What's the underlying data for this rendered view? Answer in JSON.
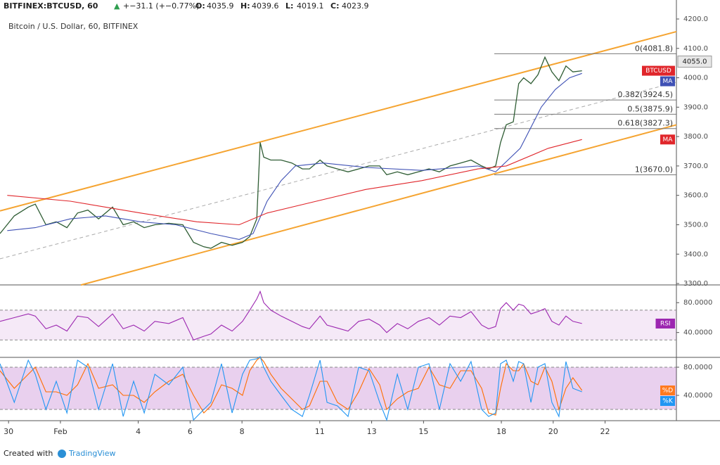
{
  "chart_data": [
    {
      "type": "line",
      "header": {
        "symbol": "BITFINEX:BTCUSD, 60",
        "arrow": "▲",
        "change": "+−31.1 (+−0.77%)",
        "ohlc": [
          {
            "label": "O:",
            "value": 4035.9
          },
          {
            "label": "H:",
            "value": 4039.6
          },
          {
            "label": "L:",
            "value": 4019.1
          },
          {
            "label": "C:",
            "value": 4023.9
          }
        ]
      },
      "subtitle": "Bitcoin / U.S. Dollar, 60, BITFINEX",
      "xlim": [
        29.67,
        55.75
      ],
      "xticks": [
        {
          "value": 30,
          "label": "30"
        },
        {
          "value": 32,
          "label": "Feb"
        },
        {
          "value": 35,
          "label": "4"
        },
        {
          "value": 37,
          "label": "6"
        },
        {
          "value": 39,
          "label": "8"
        },
        {
          "value": 42,
          "label": "11"
        },
        {
          "value": 44,
          "label": "13"
        },
        {
          "value": 46,
          "label": "15"
        },
        {
          "value": 49,
          "label": "18"
        },
        {
          "value": 51,
          "label": "20"
        },
        {
          "value": 53,
          "label": "22"
        }
      ],
      "ylim": [
        3295.3,
        4264.6
      ],
      "yticks": [
        {
          "value": 4200,
          "label": "4200.0"
        },
        {
          "value": 4100,
          "label": "4100.0"
        },
        {
          "value": 4000,
          "label": "4000.0"
        },
        {
          "value": 3900,
          "label": "3900.0"
        },
        {
          "value": 3800,
          "label": "3800.0"
        },
        {
          "value": 3700,
          "label": "3700.0"
        },
        {
          "value": 3600,
          "label": "3600.0"
        },
        {
          "value": 3500,
          "label": "3500.0"
        },
        {
          "value": 3400,
          "label": "3400.0"
        },
        {
          "value": 3300,
          "label": "3300.0"
        }
      ],
      "price_tag": {
        "value": 4055,
        "label": "4055.0"
      },
      "series": [
        {
          "name": "BTCUSD",
          "color": "#2f5d34",
          "tag_color": "#e0262b",
          "x": [
            29.67,
            30.22,
            30.76,
            31.03,
            31.44,
            31.84,
            32.25,
            32.66,
            33.06,
            33.47,
            34.01,
            34.42,
            34.82,
            35.23,
            35.64,
            36.18,
            36.72,
            37.13,
            37.53,
            37.8,
            38.21,
            38.62,
            39.02,
            39.3,
            39.57,
            39.7,
            39.84,
            40.11,
            40.51,
            40.92,
            41.33,
            41.6,
            42.01,
            42.28,
            42.68,
            43.09,
            43.5,
            43.9,
            44.31,
            44.58,
            44.99,
            45.39,
            45.8,
            46.21,
            46.61,
            47.02,
            47.43,
            47.83,
            48.24,
            48.51,
            48.78,
            48.97,
            49.19,
            49.46,
            49.67,
            49.86,
            50.14,
            50.41,
            50.68,
            50.95,
            51.22,
            51.49,
            51.76,
            52.11
          ],
          "values": [
            3470,
            3530,
            3560,
            3570,
            3500,
            3510,
            3490,
            3540,
            3550,
            3520,
            3560,
            3500,
            3510,
            3490,
            3500,
            3505,
            3500,
            3440,
            3425,
            3420,
            3440,
            3430,
            3440,
            3460,
            3520,
            3780,
            3730,
            3720,
            3720,
            3710,
            3690,
            3690,
            3720,
            3700,
            3690,
            3680,
            3690,
            3700,
            3700,
            3670,
            3680,
            3670,
            3680,
            3690,
            3680,
            3700,
            3710,
            3720,
            3700,
            3690,
            3700,
            3780,
            3840,
            3850,
            3980,
            4000,
            3980,
            4010,
            4070,
            4020,
            3990,
            4040,
            4020,
            4023.9
          ]
        },
        {
          "name": "MA",
          "color": "#3f51b5",
          "tag_color": "#3f51b5",
          "x": [
            29.95,
            31.03,
            32.38,
            33.74,
            35.09,
            36.45,
            37.8,
            38.89,
            39.43,
            39.97,
            40.51,
            41.06,
            42.14,
            43.77,
            45.93,
            48.1,
            48.78,
            49.73,
            50.54,
            51.08,
            51.63,
            52.11
          ],
          "values": [
            3480,
            3490,
            3520,
            3530,
            3510,
            3500,
            3470,
            3450,
            3470,
            3580,
            3650,
            3700,
            3710,
            3695,
            3685,
            3700,
            3680,
            3760,
            3900,
            3960,
            4000,
            4015
          ]
        },
        {
          "name": "MA",
          "color": "#e0262b",
          "tag_color": "#e0262b",
          "x": [
            29.95,
            32.38,
            35.09,
            37.26,
            38.89,
            39.97,
            41.87,
            43.77,
            45.93,
            48.1,
            49.19,
            50.81,
            52.11
          ],
          "values": [
            3600,
            3580,
            3540,
            3510,
            3500,
            3540,
            3580,
            3620,
            3650,
            3690,
            3700,
            3760,
            3790
          ]
        }
      ],
      "fib_levels": [
        {
          "label": "0(4081.8)",
          "value": 4081.8
        },
        {
          "label": "0.382(3924.5)",
          "value": 3924.5
        },
        {
          "label": "0.5(3875.9)",
          "value": 3875.9
        },
        {
          "label": "0.618(3827.3)",
          "value": 3827.3
        },
        {
          "label": "1(3670.0)",
          "value": 3670.0
        }
      ],
      "trendlines": [
        {
          "color": "#f5a431",
          "dashed": false,
          "x": [
            29.67,
            55.75
          ],
          "y": [
            3547,
            4157
          ]
        },
        {
          "color": "#f5a431",
          "dashed": false,
          "x": [
            32.79,
            55.75
          ],
          "y": [
            3295,
            3840
          ]
        },
        {
          "color": "#aaaaaa",
          "dashed": true,
          "x": [
            29.67,
            55.75
          ],
          "y": [
            3384,
            3985
          ]
        }
      ]
    },
    {
      "type": "line",
      "ylim": [
        6.7,
        103.8
      ],
      "yticks": [
        {
          "value": 80,
          "label": "80.0000"
        },
        {
          "value": 40,
          "label": "40.0000"
        }
      ],
      "band": [
        30,
        70
      ],
      "band_color": "#9c27b0",
      "series": [
        {
          "name": "RSI",
          "color": "#9c27b0",
          "tag_color": "#9c27b0",
          "values": [
            55,
            60,
            65,
            62,
            45,
            50,
            42,
            62,
            60,
            48,
            65,
            45,
            50,
            42,
            55,
            52,
            60,
            30,
            35,
            38,
            50,
            42,
            55,
            70,
            85,
            95,
            80,
            70,
            62,
            55,
            48,
            45,
            62,
            50,
            46,
            42,
            55,
            58,
            50,
            40,
            52,
            45,
            55,
            60,
            50,
            62,
            60,
            68,
            50,
            45,
            48,
            72,
            80,
            70,
            78,
            76,
            65,
            68,
            72,
            55,
            50,
            62,
            55,
            52
          ]
        }
      ]
    },
    {
      "type": "line",
      "ylim": [
        4,
        94
      ],
      "yticks": [
        {
          "value": 80,
          "label": "80.0000"
        },
        {
          "value": 40,
          "label": "40.0000"
        }
      ],
      "band": [
        20,
        80
      ],
      "band_color": "#9c27b0",
      "series": [
        {
          "name": "%D",
          "color": "#ff6d00",
          "tag_color": "#ff7a1f",
          "values": [
            75,
            50,
            70,
            80,
            45,
            45,
            40,
            55,
            85,
            50,
            55,
            40,
            40,
            30,
            45,
            60,
            70,
            40,
            15,
            25,
            55,
            50,
            40,
            75,
            90,
            94,
            88,
            70,
            50,
            35,
            20,
            25,
            60,
            60,
            30,
            20,
            45,
            78,
            55,
            20,
            35,
            45,
            50,
            80,
            55,
            50,
            75,
            75,
            50,
            15,
            12,
            50,
            85,
            75,
            75,
            85,
            60,
            55,
            80,
            60,
            20,
            50,
            65,
            47
          ]
        },
        {
          "name": "%K",
          "color": "#2196f3",
          "tag_color": "#2196f3",
          "values": [
            85,
            30,
            90,
            70,
            20,
            60,
            15,
            90,
            80,
            20,
            85,
            10,
            60,
            15,
            70,
            55,
            80,
            5,
            20,
            30,
            85,
            15,
            70,
            90,
            92,
            95,
            80,
            60,
            40,
            20,
            10,
            40,
            90,
            30,
            25,
            10,
            80,
            75,
            30,
            5,
            70,
            20,
            80,
            85,
            20,
            85,
            60,
            88,
            20,
            10,
            15,
            85,
            90,
            60,
            88,
            85,
            30,
            80,
            85,
            30,
            10,
            88,
            50,
            45
          ]
        }
      ]
    }
  ],
  "footer": {
    "created": "Created with",
    "brand": "TradingView"
  }
}
